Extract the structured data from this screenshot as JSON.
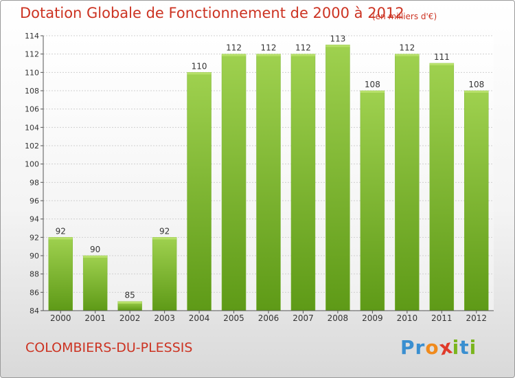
{
  "title": "Dotation Globale de Fonctionnement de 2000 à 2012",
  "unit_note": "(en milliers d'€)",
  "location": "COLOMBIERS-DU-PLESSIS",
  "brand": {
    "text": "Proxiti",
    "letters": [
      {
        "ch": "P",
        "color": "#3a8fd0"
      },
      {
        "ch": "r",
        "color": "#3a8fd0"
      },
      {
        "ch": "o",
        "color": "#f08a1c"
      },
      {
        "ch": "x",
        "color": "#e03a2a"
      },
      {
        "ch": "i",
        "color": "#7ab51d"
      },
      {
        "ch": "t",
        "color": "#3a8fd0"
      },
      {
        "ch": "i",
        "color": "#7ab51d"
      }
    ]
  },
  "colors": {
    "title": "#cc3322",
    "bar_top": "#9fd14f",
    "bar_bottom": "#5e9a17"
  },
  "chart_data": {
    "type": "bar",
    "title": "Dotation Globale de Fonctionnement de 2000 à 2012",
    "subtitle": "(en milliers d'€)",
    "xlabel": "",
    "ylabel": "",
    "categories": [
      "2000",
      "2001",
      "2002",
      "2003",
      "2004",
      "2005",
      "2006",
      "2007",
      "2008",
      "2009",
      "2010",
      "2011",
      "2012"
    ],
    "values": [
      92,
      90,
      85,
      92,
      110,
      112,
      112,
      112,
      113,
      108,
      112,
      111,
      108
    ],
    "ylim": [
      84,
      114
    ],
    "yticks": [
      84,
      86,
      88,
      90,
      92,
      94,
      96,
      98,
      100,
      102,
      104,
      106,
      108,
      110,
      112,
      114
    ],
    "grid": true,
    "legend": "none"
  }
}
